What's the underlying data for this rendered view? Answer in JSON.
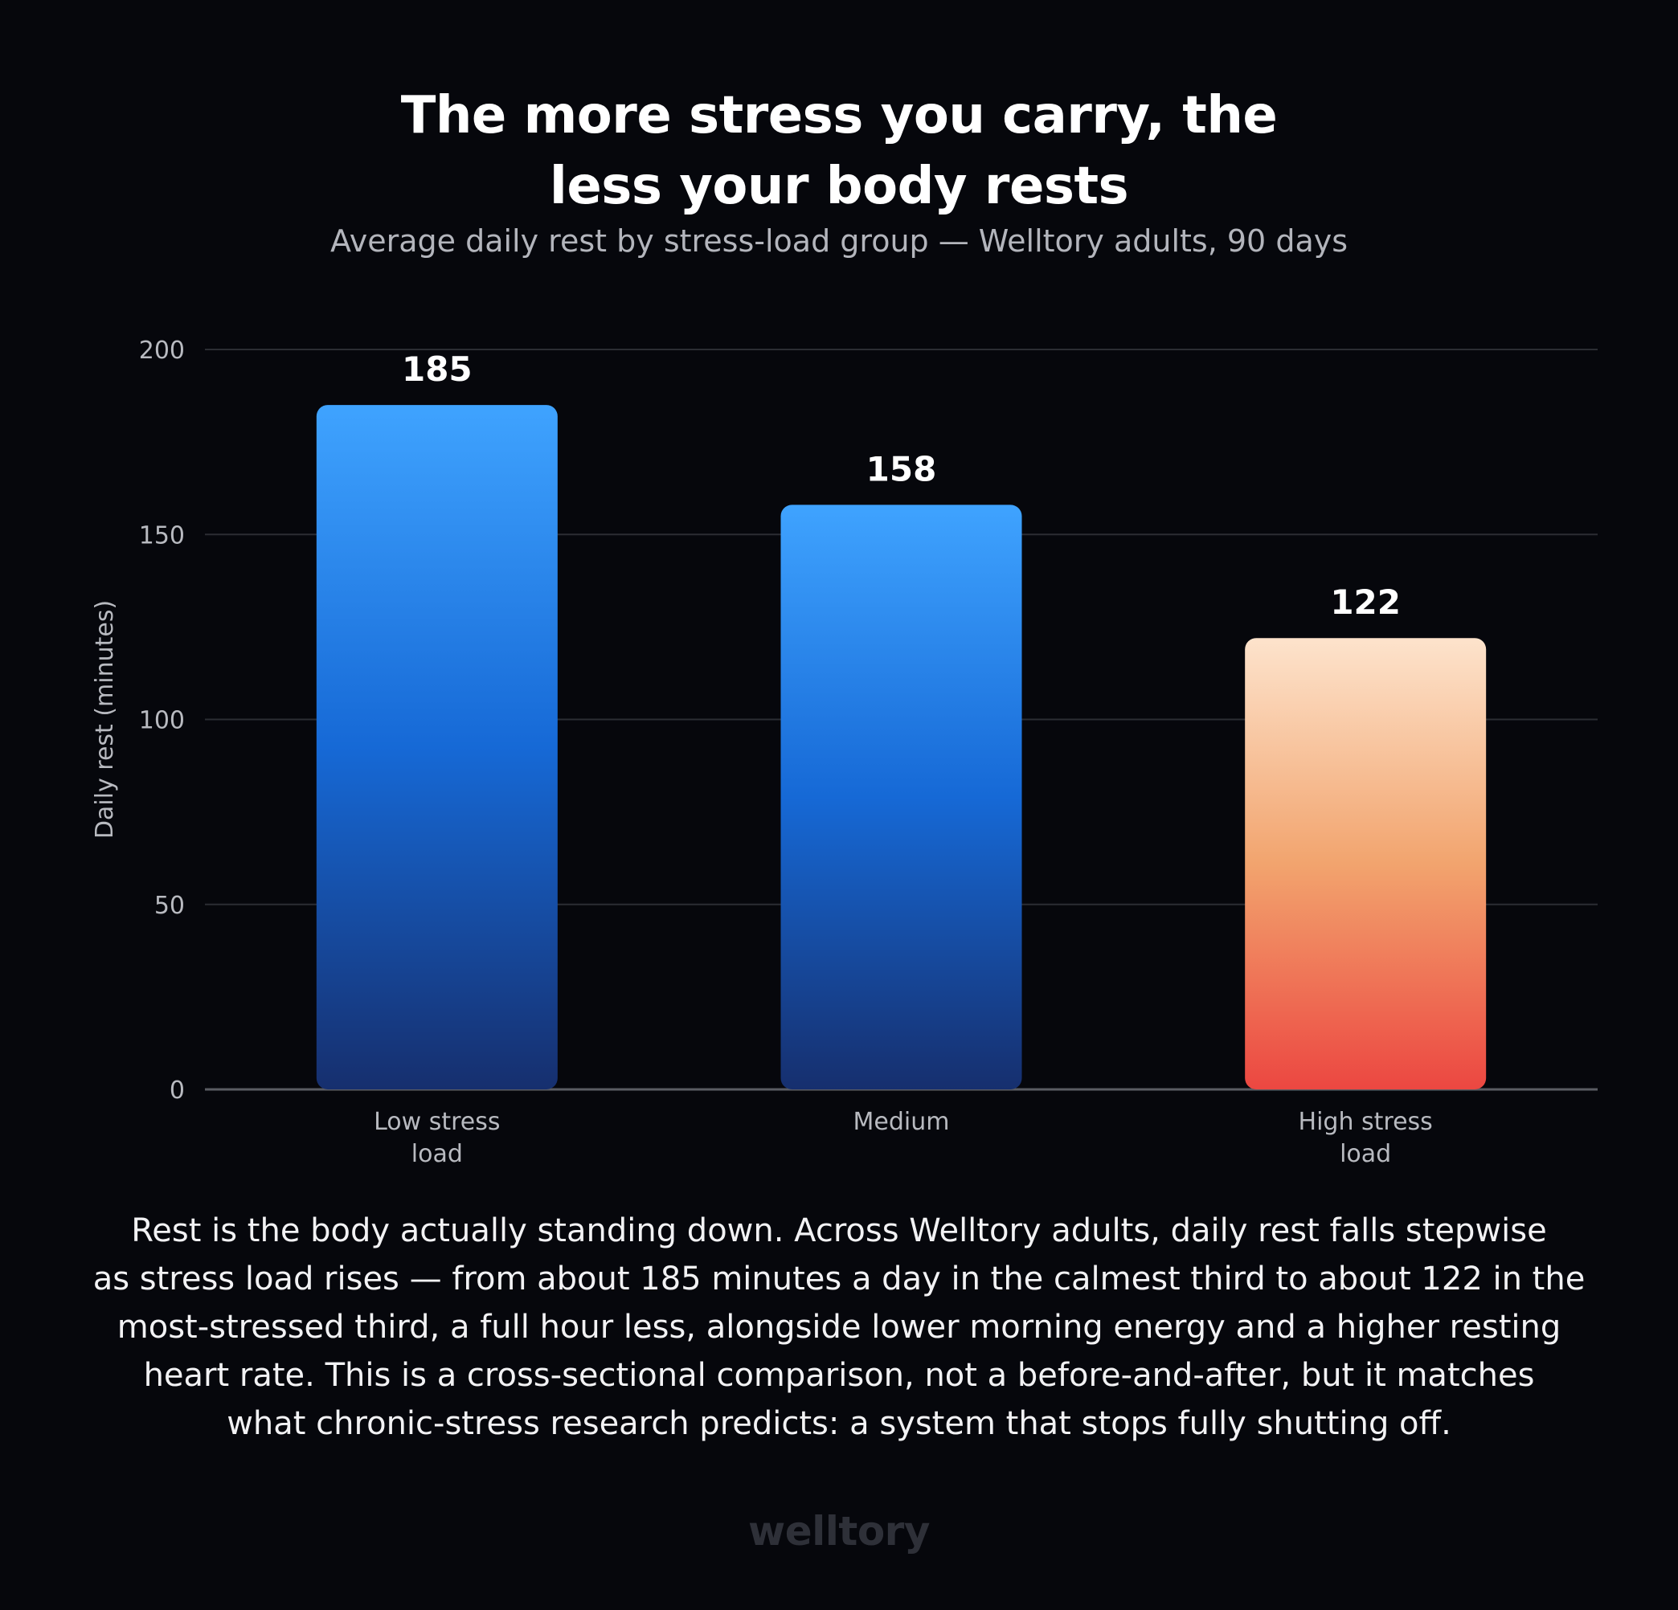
{
  "header": {
    "title_line1": "The more stress you carry, the",
    "title_line2": "less your body rests",
    "subtitle": "Average daily rest by stress-load group — Welltory adults, 90 days"
  },
  "chart_data": {
    "type": "bar",
    "categories": [
      [
        "Low stress",
        "load"
      ],
      [
        "Medium"
      ],
      [
        "High stress",
        "load"
      ]
    ],
    "values": [
      185,
      158,
      122
    ],
    "data_labels": [
      "185",
      "158",
      "122"
    ],
    "ylabel": "Daily rest (minutes)",
    "xlabel": "",
    "ylim": [
      0,
      200
    ],
    "yticks": [
      0,
      50,
      100,
      150,
      200
    ],
    "grid": true,
    "bar_gradients": [
      [
        "#3fa3ff",
        "#1669d6",
        "#162f6e"
      ],
      [
        "#3fa3ff",
        "#1669d6",
        "#162f6e"
      ],
      [
        "#fde3cc",
        "#f2a46e",
        "#ec4741"
      ]
    ],
    "colors": {
      "grid": "#2b2d33",
      "axis": "#5a5c63",
      "tick_label": "#b8bac0",
      "data_label": "#ffffff"
    }
  },
  "caption": {
    "lines": [
      "Rest is the body actually standing down. Across Welltory adults, daily rest falls stepwise",
      "as stress load rises — from about 185 minutes a day in the calmest third to about 122 in the",
      "most-stressed third, a full hour less, alongside lower morning energy and a higher resting",
      "heart rate. This is a cross-sectional comparison, not a before-and-after, but it matches",
      "what chronic-stress research predicts: a system that stops fully shutting off."
    ]
  },
  "brand": {
    "logo_text": "welltory"
  }
}
